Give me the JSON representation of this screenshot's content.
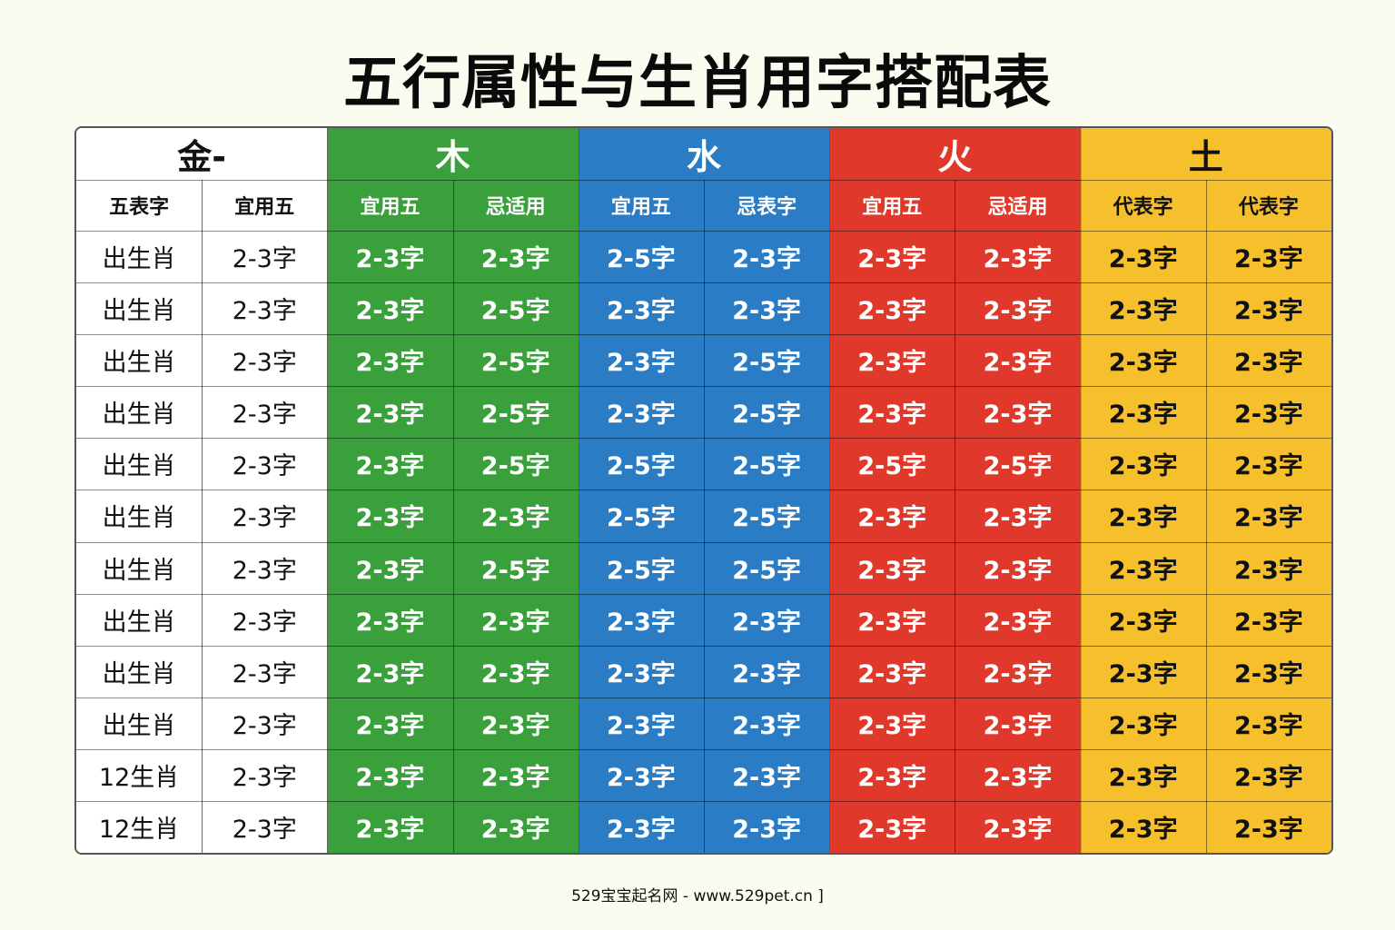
{
  "title": "五行属性与生肖用字搭配表",
  "colors": {
    "jin": "#ffffff",
    "mu": "#3aa03c",
    "shui": "#2a7cc4",
    "huo": "#e0392b",
    "tu": "#f6c02c"
  },
  "groups": [
    {
      "label": "金-",
      "key": "jin",
      "text_color": "#111111"
    },
    {
      "label": "木",
      "key": "mu",
      "text_color": "#ffffff"
    },
    {
      "label": "水",
      "key": "shui",
      "text_color": "#ffffff"
    },
    {
      "label": "火",
      "key": "huo",
      "text_color": "#ffffff"
    },
    {
      "label": "土",
      "key": "tu",
      "text_color": "#111111"
    }
  ],
  "subheaders": [
    "五表字",
    "宜用五",
    "宜用五",
    "忌适用",
    "宜用五",
    "忌表字",
    "宜用五",
    "忌适用",
    "代表字",
    "代表字"
  ],
  "rows": [
    [
      "出生肖",
      "2-3字",
      "2-3字",
      "2-3字",
      "2-5字",
      "2-3字",
      "2-3字",
      "2-3字",
      "2-3字",
      "2-3字"
    ],
    [
      "出生肖",
      "2-3字",
      "2-3字",
      "2-5字",
      "2-3字",
      "2-3字",
      "2-3字",
      "2-3字",
      "2-3字",
      "2-3字"
    ],
    [
      "出生肖",
      "2-3字",
      "2-3字",
      "2-5字",
      "2-3字",
      "2-5字",
      "2-3字",
      "2-3字",
      "2-3字",
      "2-3字"
    ],
    [
      "出生肖",
      "2-3字",
      "2-3字",
      "2-5字",
      "2-3字",
      "2-5字",
      "2-3字",
      "2-3字",
      "2-3字",
      "2-3字"
    ],
    [
      "出生肖",
      "2-3字",
      "2-3字",
      "2-5字",
      "2-5字",
      "2-5字",
      "2-5字",
      "2-5字",
      "2-3字",
      "2-3字"
    ],
    [
      "出生肖",
      "2-3字",
      "2-3字",
      "2-3字",
      "2-5字",
      "2-5字",
      "2-3字",
      "2-3字",
      "2-3字",
      "2-3字"
    ],
    [
      "出生肖",
      "2-3字",
      "2-3字",
      "2-5字",
      "2-5字",
      "2-5字",
      "2-3字",
      "2-3字",
      "2-3字",
      "2-3字"
    ],
    [
      "出生肖",
      "2-3字",
      "2-3字",
      "2-3字",
      "2-3字",
      "2-3字",
      "2-3字",
      "2-3字",
      "2-3字",
      "2-3字"
    ],
    [
      "出生肖",
      "2-3字",
      "2-3字",
      "2-3字",
      "2-3字",
      "2-3字",
      "2-3字",
      "2-3字",
      "2-3字",
      "2-3字"
    ],
    [
      "出生肖",
      "2-3字",
      "2-3字",
      "2-3字",
      "2-3字",
      "2-3字",
      "2-3字",
      "2-3字",
      "2-3字",
      "2-3字"
    ],
    [
      "12生肖",
      "2-3字",
      "2-3字",
      "2-3字",
      "2-3字",
      "2-3字",
      "2-3字",
      "2-3字",
      "2-3字",
      "2-3字"
    ],
    [
      "12生肖",
      "2-3字",
      "2-3字",
      "2-3字",
      "2-3字",
      "2-3字",
      "2-3字",
      "2-3字",
      "2-3字",
      "2-3字"
    ]
  ],
  "footer": "529宝宝起名网 - www.529pet.cn ]"
}
